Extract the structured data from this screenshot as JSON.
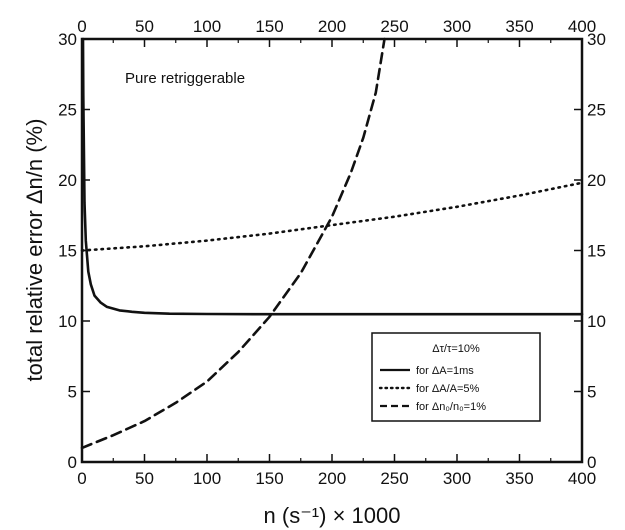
{
  "chart_data": {
    "type": "line",
    "xlabel": "n (s⁻¹) × 1000",
    "ylabel": "total relative error Δn/n (%)",
    "xlim": [
      0,
      400
    ],
    "ylim": [
      0,
      30
    ],
    "xticks": [
      0,
      50,
      100,
      150,
      200,
      250,
      300,
      350,
      400
    ],
    "yticks": [
      0,
      5,
      10,
      15,
      20,
      25,
      30
    ],
    "xtick_labels": [
      "0",
      "50",
      "100",
      "150",
      "200",
      "250",
      "300",
      "350",
      "400"
    ],
    "ytick_labels": [
      "0",
      "5",
      "10",
      "15",
      "20",
      "25",
      "30"
    ],
    "annotation": "Pure retriggerable",
    "legend": {
      "title": "Δτ/τ=10%",
      "position": "lower-right"
    },
    "series": [
      {
        "name": "for ΔA=1ms",
        "style": "solid",
        "color": "#111111",
        "x": [
          0.8,
          1,
          2,
          3,
          5,
          7,
          10,
          15,
          20,
          30,
          40,
          50,
          70,
          100,
          150,
          200,
          250,
          300,
          350,
          400
        ],
        "y": [
          30,
          26.0,
          18.4,
          15.7,
          13.5,
          12.6,
          11.8,
          11.3,
          11.0,
          10.75,
          10.65,
          10.58,
          10.52,
          10.5,
          10.48,
          10.48,
          10.48,
          10.48,
          10.48,
          10.48
        ]
      },
      {
        "name": "for ΔA/A=5%",
        "style": "dotted",
        "color": "#111111",
        "x": [
          0,
          50,
          100,
          150,
          200,
          250,
          300,
          350,
          400
        ],
        "y": [
          15.0,
          15.3,
          15.7,
          16.2,
          16.8,
          17.4,
          18.1,
          18.9,
          19.8
        ]
      },
      {
        "name": "for Δn₀/n₀=1%",
        "style": "dashed",
        "color": "#111111",
        "x": [
          0,
          25,
          50,
          75,
          100,
          125,
          150,
          175,
          200,
          215,
          225,
          235,
          242
        ],
        "y": [
          1.0,
          1.9,
          2.9,
          4.2,
          5.7,
          7.8,
          10.3,
          13.4,
          17.4,
          20.5,
          23.0,
          26.2,
          30.0
        ]
      }
    ]
  }
}
